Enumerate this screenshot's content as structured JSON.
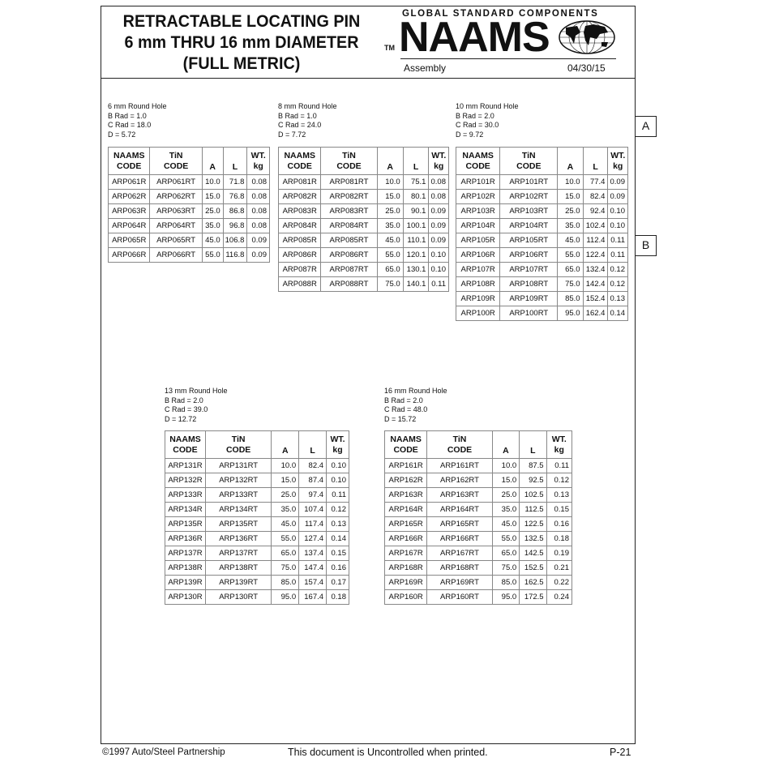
{
  "header": {
    "title_lines": [
      "RETRACTABLE LOCATING PIN",
      "6 mm THRU 16 mm DIAMETER",
      "(FULL METRIC)"
    ],
    "brand_tagline": "GLOBAL STANDARD COMPONENTS",
    "brand": "NAAMS",
    "trademark": "TM",
    "section": "Assembly",
    "date": "04/30/15"
  },
  "columns": {
    "naams": [
      "NAAMS",
      "CODE"
    ],
    "tin": [
      "TiN",
      "CODE"
    ],
    "a": "A",
    "l": "L",
    "wt": [
      "WT.",
      "kg"
    ]
  },
  "tables": [
    {
      "spec": [
        "6 mm Round Hole",
        "B Rad = 1.0",
        "C Rad = 18.0",
        "D = 5.72"
      ],
      "rows": [
        [
          "ARP061R",
          "ARP061RT",
          "10.0",
          "71.8",
          "0.08"
        ],
        [
          "ARP062R",
          "ARP062RT",
          "15.0",
          "76.8",
          "0.08"
        ],
        [
          "ARP063R",
          "ARP063RT",
          "25.0",
          "86.8",
          "0.08"
        ],
        [
          "ARP064R",
          "ARP064RT",
          "35.0",
          "96.8",
          "0.08"
        ],
        [
          "ARP065R",
          "ARP065RT",
          "45.0",
          "106.8",
          "0.09"
        ],
        [
          "ARP066R",
          "ARP066RT",
          "55.0",
          "116.8",
          "0.09"
        ]
      ]
    },
    {
      "spec": [
        "8 mm Round Hole",
        "B Rad = 1.0",
        "C Rad = 24.0",
        "D = 7.72"
      ],
      "rows": [
        [
          "ARP081R",
          "ARP081RT",
          "10.0",
          "75.1",
          "0.08"
        ],
        [
          "ARP082R",
          "ARP082RT",
          "15.0",
          "80.1",
          "0.08"
        ],
        [
          "ARP083R",
          "ARP083RT",
          "25.0",
          "90.1",
          "0.09"
        ],
        [
          "ARP084R",
          "ARP084RT",
          "35.0",
          "100.1",
          "0.09"
        ],
        [
          "ARP085R",
          "ARP085RT",
          "45.0",
          "110.1",
          "0.09"
        ],
        [
          "ARP086R",
          "ARP086RT",
          "55.0",
          "120.1",
          "0.10"
        ],
        [
          "ARP087R",
          "ARP087RT",
          "65.0",
          "130.1",
          "0.10"
        ],
        [
          "ARP088R",
          "ARP088RT",
          "75.0",
          "140.1",
          "0.11"
        ]
      ]
    },
    {
      "spec": [
        "10 mm Round Hole",
        "B Rad = 2.0",
        "C Rad = 30.0",
        "D = 9.72"
      ],
      "rows": [
        [
          "ARP101R",
          "ARP101RT",
          "10.0",
          "77.4",
          "0.09"
        ],
        [
          "ARP102R",
          "ARP102RT",
          "15.0",
          "82.4",
          "0.09"
        ],
        [
          "ARP103R",
          "ARP103RT",
          "25.0",
          "92.4",
          "0.10"
        ],
        [
          "ARP104R",
          "ARP104RT",
          "35.0",
          "102.4",
          "0.10"
        ],
        [
          "ARP105R",
          "ARP105RT",
          "45.0",
          "112.4",
          "0.11"
        ],
        [
          "ARP106R",
          "ARP106RT",
          "55.0",
          "122.4",
          "0.11"
        ],
        [
          "ARP107R",
          "ARP107RT",
          "65.0",
          "132.4",
          "0.12"
        ],
        [
          "ARP108R",
          "ARP108RT",
          "75.0",
          "142.4",
          "0.12"
        ],
        [
          "ARP109R",
          "ARP109RT",
          "85.0",
          "152.4",
          "0.13"
        ],
        [
          "ARP100R",
          "ARP100RT",
          "95.0",
          "162.4",
          "0.14"
        ]
      ]
    },
    {
      "spec": [
        "13 mm Round Hole",
        "B Rad = 2.0",
        "C Rad = 39.0",
        "D = 12.72"
      ],
      "rows": [
        [
          "ARP131R",
          "ARP131RT",
          "10.0",
          "82.4",
          "0.10"
        ],
        [
          "ARP132R",
          "ARP132RT",
          "15.0",
          "87.4",
          "0.10"
        ],
        [
          "ARP133R",
          "ARP133RT",
          "25.0",
          "97.4",
          "0.11"
        ],
        [
          "ARP134R",
          "ARP134RT",
          "35.0",
          "107.4",
          "0.12"
        ],
        [
          "ARP135R",
          "ARP135RT",
          "45.0",
          "117.4",
          "0.13"
        ],
        [
          "ARP136R",
          "ARP136RT",
          "55.0",
          "127.4",
          "0.14"
        ],
        [
          "ARP137R",
          "ARP137RT",
          "65.0",
          "137.4",
          "0.15"
        ],
        [
          "ARP138R",
          "ARP138RT",
          "75.0",
          "147.4",
          "0.16"
        ],
        [
          "ARP139R",
          "ARP139RT",
          "85.0",
          "157.4",
          "0.17"
        ],
        [
          "ARP130R",
          "ARP130RT",
          "95.0",
          "167.4",
          "0.18"
        ]
      ]
    },
    {
      "spec": [
        "16 mm Round Hole",
        "B Rad = 2.0",
        "C Rad = 48.0",
        "D = 15.72"
      ],
      "rows": [
        [
          "ARP161R",
          "ARP161RT",
          "10.0",
          "87.5",
          "0.11"
        ],
        [
          "ARP162R",
          "ARP162RT",
          "15.0",
          "92.5",
          "0.12"
        ],
        [
          "ARP163R",
          "ARP163RT",
          "25.0",
          "102.5",
          "0.13"
        ],
        [
          "ARP164R",
          "ARP164RT",
          "35.0",
          "112.5",
          "0.15"
        ],
        [
          "ARP165R",
          "ARP165RT",
          "45.0",
          "122.5",
          "0.16"
        ],
        [
          "ARP166R",
          "ARP166RT",
          "55.0",
          "132.5",
          "0.18"
        ],
        [
          "ARP167R",
          "ARP167RT",
          "65.0",
          "142.5",
          "0.19"
        ],
        [
          "ARP168R",
          "ARP168RT",
          "75.0",
          "152.5",
          "0.21"
        ],
        [
          "ARP169R",
          "ARP169RT",
          "85.0",
          "162.5",
          "0.22"
        ],
        [
          "ARP160R",
          "ARP160RT",
          "95.0",
          "172.5",
          "0.24"
        ]
      ]
    }
  ],
  "callouts": [
    "A",
    "B"
  ],
  "footer": {
    "copyright": "©1997 Auto/Steel Partnership",
    "note": "This document is Uncontrolled when printed.",
    "page": "P-21"
  }
}
